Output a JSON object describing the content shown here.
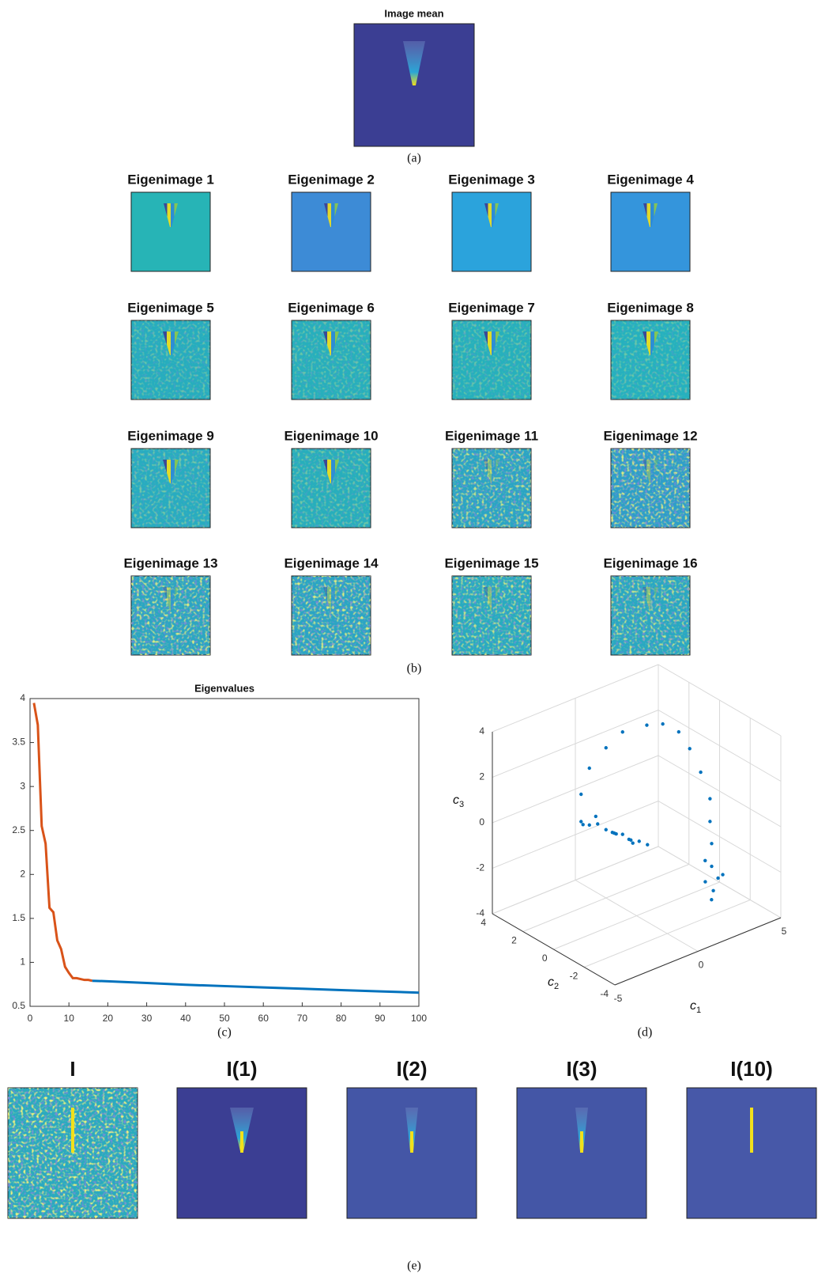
{
  "panel_a": {
    "title": "Image mean",
    "label": "(a)"
  },
  "panel_b": {
    "titles": [
      "Eigenimage 1",
      "Eigenimage 2",
      "Eigenimage 3",
      "Eigenimage 4",
      "Eigenimage 5",
      "Eigenimage 6",
      "Eigenimage 7",
      "Eigenimage 8",
      "Eigenimage 9",
      "Eigenimage 10",
      "Eigenimage 11",
      "Eigenimage 12",
      "Eigenimage 13",
      "Eigenimage 14",
      "Eigenimage 15",
      "Eigenimage 16"
    ],
    "label": "(b)"
  },
  "panel_e": {
    "titles": [
      "I",
      "I(1)",
      "I(2)",
      "I(3)",
      "I(10)"
    ],
    "label": "(e)"
  },
  "chart_data": [
    {
      "type": "line",
      "title": "Eigenvalues",
      "label": "(c)",
      "series": [
        {
          "color": "#d95319",
          "x": [
            1,
            2,
            3,
            4,
            5,
            6,
            7,
            8,
            9,
            10,
            11,
            12,
            13,
            14,
            15,
            16
          ],
          "values": [
            3.95,
            3.7,
            2.55,
            2.35,
            1.62,
            1.57,
            1.25,
            1.15,
            0.95,
            0.88,
            0.82,
            0.82,
            0.81,
            0.8,
            0.8,
            0.79
          ]
        },
        {
          "color": "#0072bd",
          "x": [
            16,
            20,
            30,
            40,
            50,
            60,
            70,
            80,
            90,
            100
          ],
          "values": [
            0.79,
            0.785,
            0.765,
            0.745,
            0.73,
            0.715,
            0.7,
            0.685,
            0.67,
            0.655
          ]
        }
      ],
      "xlim": [
        0,
        100
      ],
      "xticks": [
        0,
        10,
        20,
        30,
        40,
        50,
        60,
        70,
        80,
        90,
        100
      ],
      "ylim": [
        0.5,
        4
      ],
      "yticks": [
        0.5,
        1,
        1.5,
        2,
        2.5,
        3,
        3.5,
        4
      ]
    },
    {
      "type": "scatter3d",
      "label": "(d)",
      "grid": true,
      "xlabel": {
        "text": "c",
        "sub": "1"
      },
      "ylabel": {
        "text": "c",
        "sub": "2"
      },
      "zlabel": {
        "text": "c",
        "sub": "3"
      },
      "xlim": [
        -5,
        5
      ],
      "xticks": [
        -5,
        0,
        5
      ],
      "ylim": [
        -4,
        4
      ],
      "yticks": [
        -4,
        -2,
        0,
        2,
        4
      ],
      "zlim": [
        -4,
        4
      ],
      "zticks": [
        -4,
        -2,
        0,
        2,
        4
      ],
      "series": [
        {
          "color": "#0072bd",
          "x": [
            -1.5,
            -1,
            -0.5,
            0,
            0.5,
            1,
            1.5,
            2,
            2.5,
            -1.2,
            0.2,
            1.2,
            -0.8,
            0.8,
            1.8,
            -1.5,
            -1,
            0,
            1,
            2,
            2.5,
            3,
            3.2,
            3.4,
            3.5,
            3.5,
            3.6,
            3.6,
            3.8,
            3.4,
            3.7,
            3.9,
            3.5,
            3.3
          ],
          "y": [
            2,
            2,
            2,
            2,
            2,
            2,
            2,
            2,
            2,
            2.2,
            1.8,
            1.8,
            1.8,
            2.2,
            2.2,
            2,
            2,
            2,
            2,
            1.5,
            1,
            0.5,
            0,
            -0.5,
            -1,
            -1,
            -1,
            -1,
            -1.2,
            -0.8,
            -1,
            -1.4,
            -1.1,
            -0.9
          ],
          "z": [
            -0.2,
            -0.5,
            -0.6,
            -1,
            -1.3,
            -1.5,
            -1.9,
            -2.1,
            -2.4,
            -0.5,
            -1.1,
            -1.7,
            -0.1,
            -1.5,
            -2.2,
            1,
            2,
            2.6,
            3,
            3.2,
            3.3,
            3,
            2.4,
            1.5,
            0.5,
            -0.5,
            -1.5,
            -2.5,
            -3,
            -3.2,
            -3.6,
            -2.8,
            -3.9,
            -2.2
          ]
        }
      ]
    }
  ]
}
